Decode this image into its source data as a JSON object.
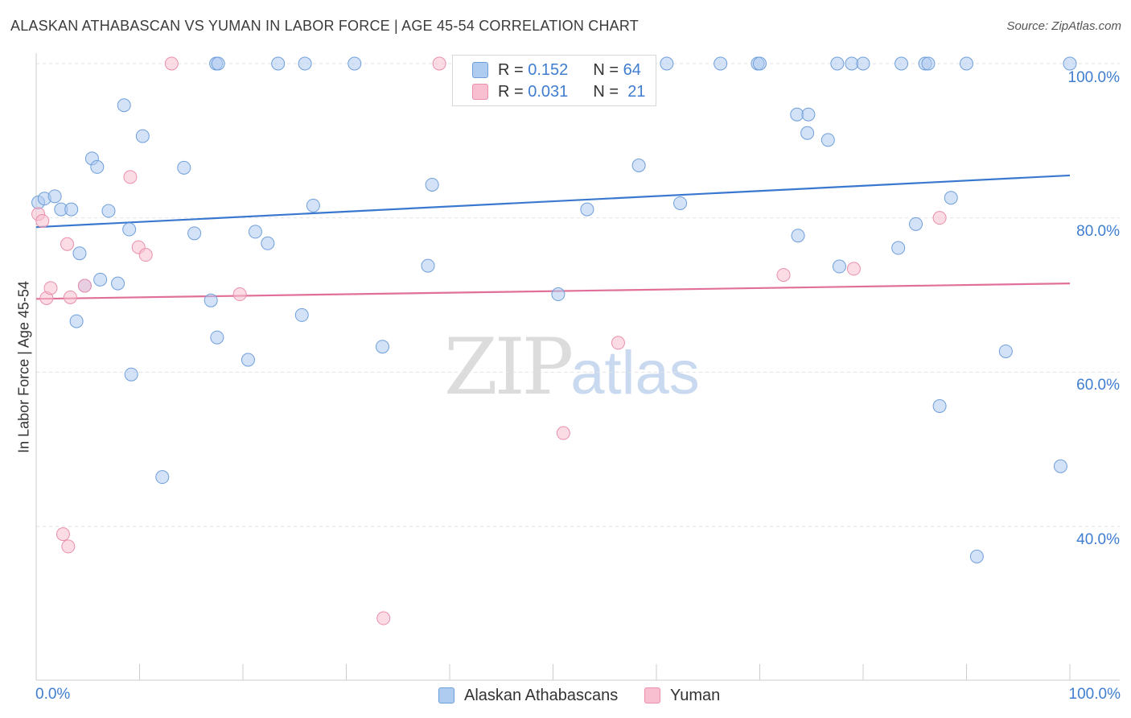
{
  "title": "ALASKAN ATHABASCAN VS YUMAN IN LABOR FORCE | AGE 45-54 CORRELATION CHART",
  "source": "Source: ZipAtlas.com",
  "watermark": {
    "zip": "ZIP",
    "atlas": "atlas"
  },
  "legend": {
    "r_label": "R =",
    "n_label": "N =",
    "blue": {
      "r": "0.152",
      "n": "64"
    },
    "pink": {
      "r": "0.031",
      "n": "21"
    }
  },
  "colors": {
    "blue_fill": "#aecbf0",
    "blue_stroke": "#6f9fdb",
    "blue_line": "#3a78cf",
    "pink_fill": "#f7bfd0",
    "pink_stroke": "#ea8fac",
    "pink_line": "#e07099",
    "grid": "#e2e2e2",
    "axis": "#cccccc",
    "tick_text": "#3f7dd0"
  },
  "chart_data": {
    "type": "scatter",
    "title": "ALASKAN ATHABASCAN VS YUMAN IN LABOR FORCE | AGE 45-54 CORRELATION CHART",
    "xlabel": "",
    "ylabel": "In Labor Force | Age 45-54",
    "xlim": [
      0,
      100
    ],
    "ylim": [
      18,
      102
    ],
    "x_tick_labels": [
      "0.0%",
      "100.0%"
    ],
    "y_ticks": [
      {
        "value": 100,
        "label": "100.0%"
      },
      {
        "value": 80,
        "label": "80.0%"
      },
      {
        "value": 60,
        "label": "60.0%"
      },
      {
        "value": 40,
        "label": "40.0%"
      }
    ],
    "series": [
      {
        "name": "Alaskan Athabascans",
        "color": "blue",
        "trend": {
          "x": [
            0,
            100
          ],
          "y": [
            78.8,
            85.5
          ]
        },
        "points": [
          [
            0.2,
            82
          ],
          [
            0.8,
            82.5
          ],
          [
            1.8,
            82.8
          ],
          [
            2.4,
            81.1
          ],
          [
            3.4,
            81.1
          ],
          [
            7.0,
            80.9
          ],
          [
            5.4,
            87.7
          ],
          [
            5.9,
            86.6
          ],
          [
            8.5,
            94.6
          ],
          [
            10.3,
            90.6
          ],
          [
            14.3,
            86.5
          ],
          [
            17.4,
            100
          ],
          [
            15.3,
            78
          ],
          [
            9.0,
            78.5
          ],
          [
            4.2,
            75.4
          ],
          [
            6.2,
            72
          ],
          [
            7.9,
            71.5
          ],
          [
            4.7,
            71.2
          ],
          [
            16.9,
            69.3
          ],
          [
            3.9,
            66.6
          ],
          [
            17.5,
            64.5
          ],
          [
            20.5,
            61.6
          ],
          [
            9.2,
            59.7
          ],
          [
            12.2,
            46.4
          ],
          [
            21.2,
            78.2
          ],
          [
            22.4,
            76.7
          ],
          [
            26.8,
            81.6
          ],
          [
            25.7,
            67.4
          ],
          [
            33.5,
            63.3
          ],
          [
            37.9,
            73.8
          ],
          [
            38.3,
            84.3
          ],
          [
            50.5,
            70.1
          ],
          [
            53.3,
            81.1
          ],
          [
            58.3,
            86.8
          ],
          [
            61.0,
            100
          ],
          [
            62.3,
            81.9
          ],
          [
            66.2,
            100
          ],
          [
            69.8,
            100
          ],
          [
            70.0,
            100
          ],
          [
            73.7,
            77.7
          ],
          [
            73.6,
            93.4
          ],
          [
            74.7,
            93.4
          ],
          [
            74.6,
            91
          ],
          [
            77.5,
            100
          ],
          [
            77.7,
            73.7
          ],
          [
            78.9,
            100
          ],
          [
            80.0,
            100
          ],
          [
            76.6,
            90.1
          ],
          [
            83.4,
            76.1
          ],
          [
            83.7,
            100
          ],
          [
            85.1,
            79.2
          ],
          [
            86.0,
            100
          ],
          [
            86.3,
            100
          ],
          [
            88.5,
            82.6
          ],
          [
            90.0,
            100
          ],
          [
            87.4,
            55.6
          ],
          [
            91.0,
            36.1
          ],
          [
            93.8,
            62.7
          ],
          [
            99.1,
            47.8
          ],
          [
            100,
            100
          ],
          [
            17.6,
            100
          ],
          [
            23.4,
            100
          ],
          [
            26.0,
            100
          ],
          [
            30.8,
            100
          ]
        ]
      },
      {
        "name": "Yuman",
        "color": "pink",
        "trend": {
          "x": [
            0,
            100
          ],
          "y": [
            69.5,
            71.5
          ]
        },
        "points": [
          [
            0.2,
            80.5
          ],
          [
            0.6,
            79.6
          ],
          [
            1.0,
            69.6
          ],
          [
            1.4,
            70.9
          ],
          [
            2.6,
            39
          ],
          [
            3.1,
            37.4
          ],
          [
            3.0,
            76.6
          ],
          [
            3.3,
            69.7
          ],
          [
            4.7,
            71.2
          ],
          [
            9.1,
            85.3
          ],
          [
            9.9,
            76.2
          ],
          [
            10.6,
            75.2
          ],
          [
            13.1,
            100
          ],
          [
            19.7,
            70.1
          ],
          [
            33.6,
            28.1
          ],
          [
            39.0,
            100
          ],
          [
            51.0,
            52.1
          ],
          [
            56.3,
            63.8
          ],
          [
            72.3,
            72.6
          ],
          [
            79.1,
            73.4
          ],
          [
            87.4,
            80
          ]
        ]
      }
    ]
  },
  "bottom_legend": {
    "blue_label": "Alaskan Athabascans",
    "pink_label": "Yuman"
  }
}
